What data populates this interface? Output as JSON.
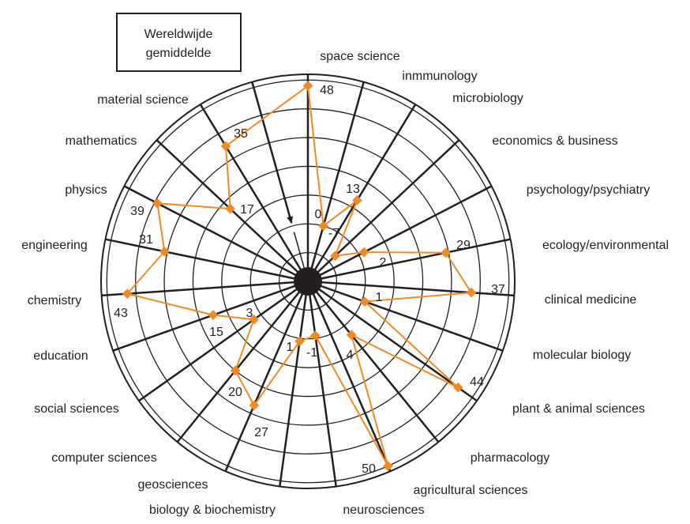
{
  "chart_data": {
    "type": "radar",
    "annotation": [
      "Wereldwijde",
      "gemiddelde"
    ],
    "categories": [
      "space science",
      "inmmunology",
      "microbiology",
      "economics & business",
      "psychology/psychiatry",
      "ecology/environmental",
      "clinical medicine",
      "molecular biology",
      "plant & animal sciences",
      "pharmacology",
      "agricultural sciences",
      "neurosciences",
      "biology & biochemistry",
      "geosciences",
      "computer sciences",
      "social sciences",
      "education",
      "chemistry",
      "engineering",
      "physics",
      "mathematics",
      "material science"
    ],
    "values": [
      48,
      0,
      13,
      -7,
      2,
      29,
      37,
      1,
      44,
      4,
      50,
      -1,
      1,
      27,
      20,
      3,
      15,
      43,
      31,
      39,
      17,
      35
    ],
    "color": "#f08a24",
    "rlim": [
      -20,
      52
    ],
    "rticks": [
      -10,
      0,
      10,
      20,
      30,
      40,
      50
    ],
    "grid": true
  }
}
